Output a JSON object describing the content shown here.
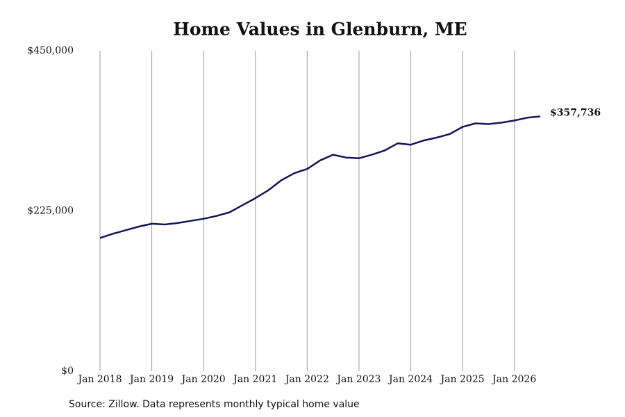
{
  "chart_data": {
    "type": "line",
    "title": "Home Values in Glenburn, ME",
    "note": "Source: Zillow. Data represents monthly typical home value",
    "x": [
      "2018-01",
      "2018-04",
      "2018-07",
      "2018-10",
      "2019-01",
      "2019-04",
      "2019-07",
      "2019-10",
      "2020-01",
      "2020-04",
      "2020-07",
      "2020-10",
      "2021-01",
      "2021-04",
      "2021-07",
      "2021-10",
      "2022-01",
      "2022-04",
      "2022-07",
      "2022-10",
      "2023-01",
      "2023-04",
      "2023-07",
      "2023-10",
      "2024-01",
      "2024-04",
      "2024-07",
      "2024-10",
      "2025-01",
      "2025-04",
      "2025-07",
      "2025-10",
      "2026-01",
      "2026-04",
      "2026-07"
    ],
    "series": [
      {
        "name": "Home value",
        "color": "#14145a",
        "values": [
          187000,
          193000,
          198000,
          203000,
          207000,
          206000,
          208000,
          211000,
          214000,
          218000,
          223000,
          233000,
          243000,
          254000,
          268000,
          278000,
          284000,
          296000,
          304000,
          300000,
          299000,
          304000,
          310000,
          320000,
          318000,
          324000,
          328000,
          333000,
          343000,
          348000,
          347000,
          349000,
          352000,
          356000,
          357736
        ],
        "value_labels": [
          null,
          null,
          null,
          null,
          null,
          null,
          null,
          null,
          null,
          null,
          null,
          null,
          null,
          null,
          null,
          null,
          null,
          null,
          null,
          null,
          null,
          null,
          null,
          null,
          null,
          null,
          null,
          null,
          null,
          null,
          null,
          null,
          null,
          null,
          "$357,736"
        ]
      }
    ],
    "xlim": [
      "2018-01",
      "2026-07"
    ],
    "xticks": [
      {
        "value": "2018-01",
        "label": "Jan 2018"
      },
      {
        "value": "2019-01",
        "label": "Jan 2019"
      },
      {
        "value": "2020-01",
        "label": "Jan 2020"
      },
      {
        "value": "2021-01",
        "label": "Jan 2021"
      },
      {
        "value": "2022-01",
        "label": "Jan 2022"
      },
      {
        "value": "2023-01",
        "label": "Jan 2023"
      },
      {
        "value": "2024-01",
        "label": "Jan 2024"
      },
      {
        "value": "2025-01",
        "label": "Jan 2025"
      },
      {
        "value": "2026-01",
        "label": "Jan 2026"
      }
    ],
    "ylim": [
      0,
      450000
    ],
    "yticks": [
      {
        "value": 0,
        "label": "$0"
      },
      {
        "value": 225000,
        "label": "$225,000"
      },
      {
        "value": 450000,
        "label": "$450,000"
      }
    ],
    "grid": "x"
  }
}
